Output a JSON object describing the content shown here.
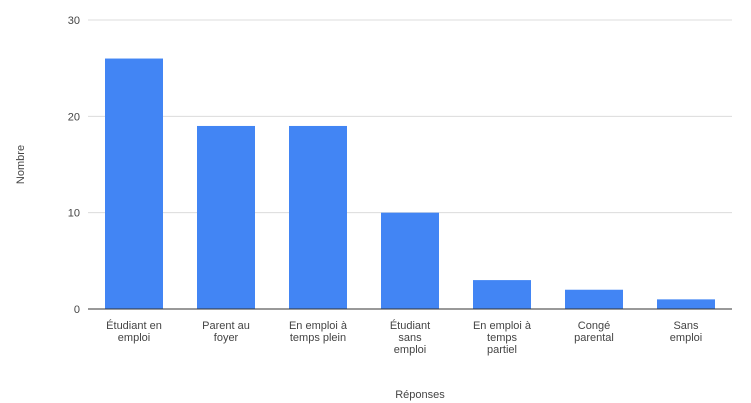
{
  "chart_data": {
    "type": "bar",
    "title": "",
    "xlabel": "Réponses",
    "ylabel": "Nombre",
    "ylim": [
      0,
      30
    ],
    "yticks": [
      0,
      10,
      20,
      30
    ],
    "grid": true,
    "legend": "none",
    "bar_color": "#4285f4",
    "categories": [
      [
        "Étudiant en",
        "emploi"
      ],
      [
        "Parent au",
        "foyer"
      ],
      [
        "En emploi à",
        "temps plein"
      ],
      [
        "Étudiant",
        "sans",
        "emploi"
      ],
      [
        "En emploi à",
        "temps",
        "partiel"
      ],
      [
        "Congé",
        "parental"
      ],
      [
        "Sans",
        "emploi"
      ]
    ],
    "values": [
      26,
      19,
      19,
      10,
      3,
      2,
      1
    ]
  }
}
